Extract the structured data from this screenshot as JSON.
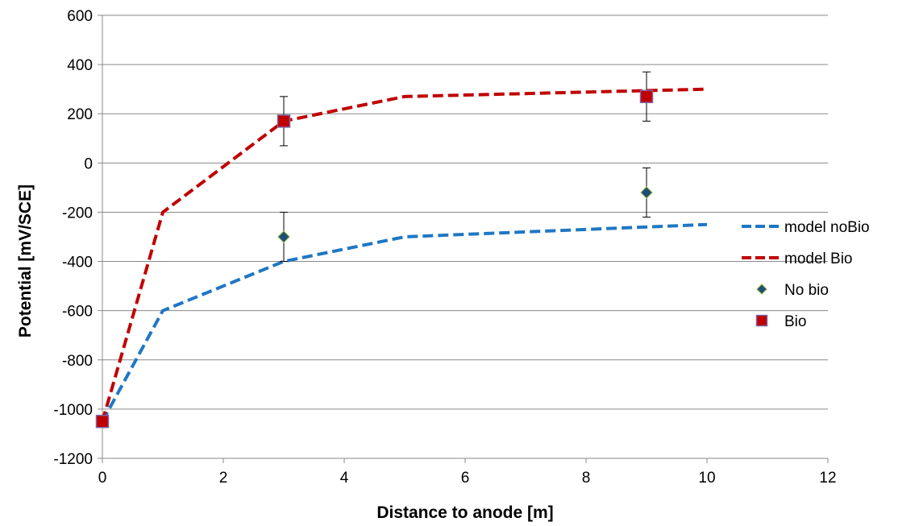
{
  "chart_data": {
    "type": "scatter",
    "title": "",
    "xlabel": "Distance to anode [m]",
    "ylabel": "Potential [mV/SCE]",
    "xlim": [
      0,
      12
    ],
    "ylim": [
      -1200,
      600
    ],
    "x_ticks": [
      0,
      2,
      4,
      6,
      8,
      10,
      12
    ],
    "y_ticks": [
      -1200,
      -1000,
      -800,
      -600,
      -400,
      -200,
      0,
      200,
      400,
      600
    ],
    "x_tick_labels": [
      "0",
      "2",
      "4",
      "6",
      "8",
      "10",
      "12"
    ],
    "y_tick_labels": [
      "-1200",
      "-1000",
      "-800",
      "-600",
      "-400",
      "-200",
      "0",
      "200",
      "400",
      "600"
    ],
    "grid": "horizontal",
    "legend_position": "right",
    "series": [
      {
        "name": "model noBio",
        "kind": "line",
        "style": "dashed",
        "color": "#1f77c4",
        "x": [
          0,
          1,
          3,
          5,
          10
        ],
        "y": [
          -1050,
          -600,
          -400,
          -300,
          -250
        ]
      },
      {
        "name": "model Bio",
        "kind": "line",
        "style": "dashed",
        "color": "#c00000",
        "x": [
          0,
          1,
          3,
          5,
          10
        ],
        "y": [
          -1050,
          -200,
          170,
          270,
          300
        ]
      },
      {
        "name": "No bio",
        "kind": "marker",
        "marker": "diamond",
        "color": "#1f4e79",
        "edge_color": "#8fb339",
        "x": [
          3,
          9
        ],
        "y": [
          -300,
          -120
        ],
        "error": [
          100,
          100
        ]
      },
      {
        "name": "Bio",
        "kind": "marker",
        "marker": "square",
        "color": "#c00000",
        "edge_color": "#8064a2",
        "x": [
          0,
          3,
          9
        ],
        "y": [
          -1050,
          170,
          270
        ],
        "error": [
          0,
          100,
          100
        ]
      }
    ]
  }
}
